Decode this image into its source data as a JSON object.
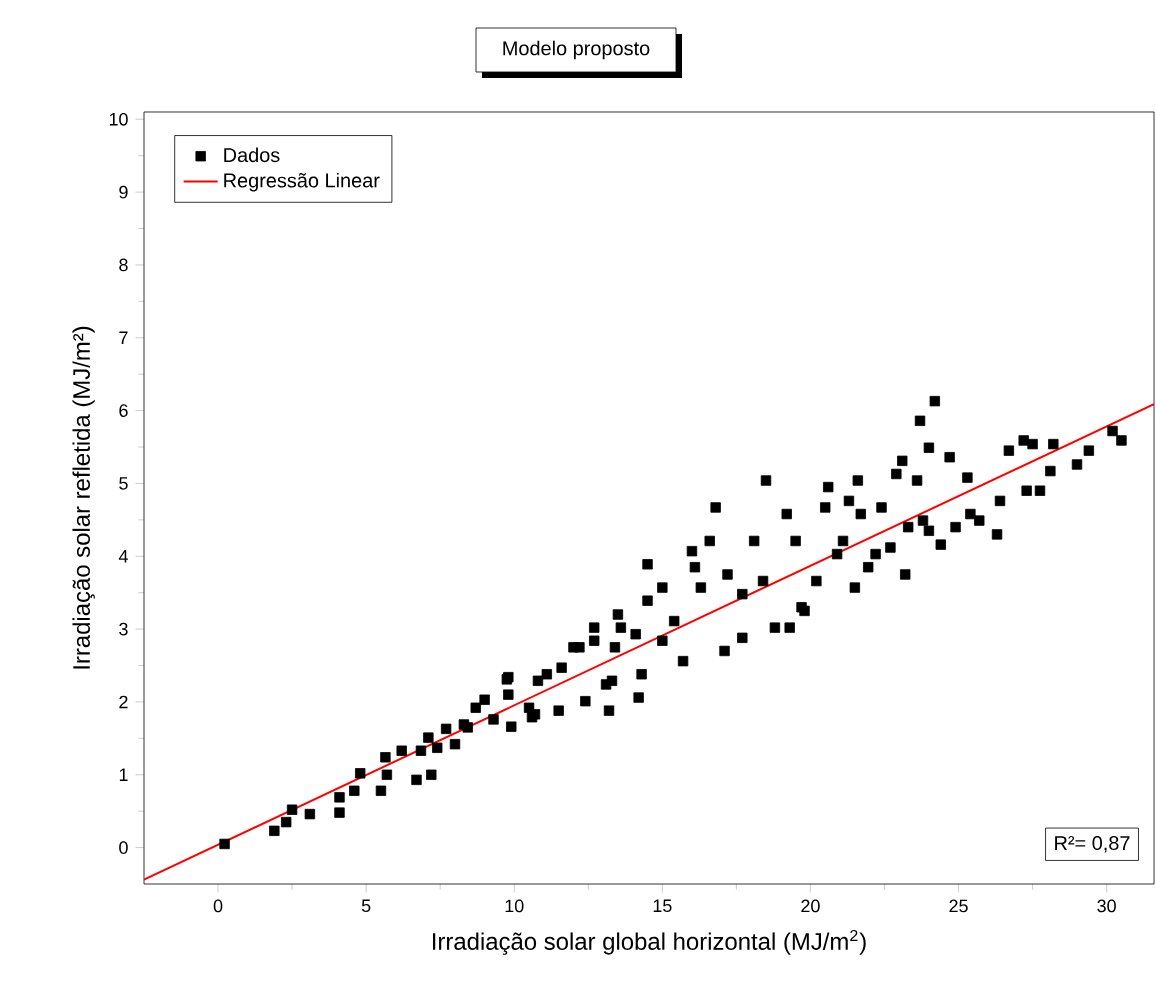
{
  "chart_data": {
    "type": "scatter",
    "title": "Modelo proposto",
    "xlabel": "Irradiação solar global horizontal (MJ/m$^{2}$)",
    "ylabel": "Irradiação solar refletida (MJ/m²)",
    "xlim": [
      -2.5,
      31.6
    ],
    "ylim": [
      -0.5,
      10.1
    ],
    "xticks": [
      0,
      5,
      10,
      15,
      20,
      25,
      30
    ],
    "yticks": [
      0,
      1,
      2,
      3,
      4,
      5,
      6,
      7,
      8,
      9,
      10
    ],
    "grid": false,
    "legend": "top left",
    "annotations": [
      "R²= 0,87"
    ],
    "series": [
      {
        "name": "Dados",
        "color": "#000000",
        "marker": "square",
        "x": [
          0.22,
          1.9,
          2.3,
          2.5,
          3.1,
          4.1,
          4.1,
          4.6,
          4.8,
          5.5,
          5.7,
          5.65,
          6.2,
          6.7,
          7.2,
          6.85,
          7.1,
          7.4,
          7.7,
          8.0,
          8.3,
          8.7,
          9.0,
          9.3,
          9.75,
          9.9,
          9.8,
          10.5,
          10.6,
          10.8,
          11.1,
          11.5,
          11.6,
          12.2,
          12.4,
          12.7,
          13.2,
          13.3,
          13.5,
          13.6,
          8.43,
          9.8,
          10.7,
          12.0,
          13.1,
          14.2,
          14.3,
          14.5,
          15.0,
          15.7,
          15.4,
          16.0,
          16.6,
          16.8,
          16.3,
          17.1,
          17.7,
          17.2,
          18.1,
          18.5,
          18.8,
          19.3,
          19.2,
          19.5,
          19.7,
          19.8,
          20.5,
          20.6,
          21.1,
          21.3,
          21.5,
          21.6,
          21.7,
          21.95,
          22.4,
          22.7,
          22.9,
          23.1,
          23.2,
          23.6,
          23.7,
          24.0,
          24.2,
          23.8,
          24.0,
          24.4,
          24.7,
          24.9,
          25.3,
          25.4,
          25.7,
          26.3,
          26.4,
          26.7,
          27.2,
          27.3,
          27.5,
          27.75,
          28.1,
          28.2,
          29.0,
          29.4,
          30.2,
          30.5,
          12.7,
          13.4,
          14.1,
          14.5,
          15.0,
          16.1,
          17.7,
          18.4,
          20.2,
          20.9,
          22.2,
          23.3
        ],
        "values": [
          0.05,
          0.23,
          0.35,
          0.52,
          0.46,
          0.48,
          0.69,
          0.78,
          1.02,
          0.78,
          1.0,
          1.24,
          1.33,
          0.93,
          1.0,
          1.33,
          1.51,
          1.37,
          1.63,
          1.42,
          1.69,
          1.92,
          2.03,
          1.76,
          2.31,
          1.66,
          2.1,
          1.92,
          1.79,
          2.29,
          2.38,
          1.88,
          2.47,
          2.75,
          2.01,
          2.84,
          1.88,
          2.29,
          3.2,
          3.02,
          1.65,
          2.34,
          1.83,
          2.75,
          2.24,
          2.06,
          2.38,
          3.89,
          3.57,
          2.56,
          3.11,
          4.07,
          4.21,
          4.67,
          3.57,
          2.7,
          2.88,
          3.75,
          4.21,
          5.04,
          3.02,
          3.02,
          4.58,
          4.21,
          3.3,
          3.25,
          4.67,
          4.95,
          4.21,
          4.76,
          3.57,
          5.04,
          4.58,
          3.85,
          4.67,
          4.12,
          5.13,
          5.31,
          3.75,
          5.04,
          5.86,
          5.49,
          6.13,
          4.49,
          4.35,
          4.16,
          5.36,
          4.4,
          5.08,
          4.58,
          4.49,
          4.3,
          4.76,
          5.45,
          5.59,
          4.9,
          5.54,
          4.9,
          5.17,
          5.54,
          5.26,
          5.45,
          5.72,
          5.59,
          3.02,
          2.75,
          2.93,
          3.39,
          2.84,
          3.85,
          3.48,
          3.66,
          3.66,
          4.03,
          4.03,
          4.4
        ]
      },
      {
        "name": "Regressão Linear",
        "color": "#ff0000",
        "type": "line",
        "marker": "none",
        "x": [
          -2.5,
          31.6
        ],
        "values": [
          -0.44,
          6.09
        ]
      }
    ]
  }
}
